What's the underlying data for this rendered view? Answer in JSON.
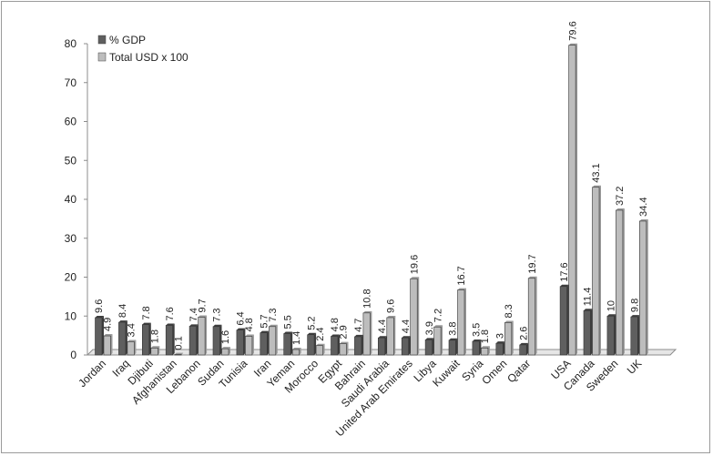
{
  "chart_data": {
    "type": "bar",
    "categories": [
      "Jordan",
      "Iraq",
      "Djibuti",
      "Afghanistan",
      "Lebanon",
      "Sudan",
      "Tunisia",
      "Iran",
      "Yeman",
      "Morocco",
      "Egypt",
      "Bahrain",
      "Saudi Arabia",
      "United Arab Emirates",
      "Libya",
      "Kuwait",
      "Syria",
      "Omen",
      "Qatar",
      "USA",
      "Canada",
      "Sweden",
      "UK"
    ],
    "series": [
      {
        "name": "% GDP",
        "values": [
          9.6,
          8.4,
          7.8,
          7.6,
          7.4,
          7.3,
          6.4,
          5.7,
          5.5,
          5.2,
          4.8,
          4.7,
          4.4,
          4.4,
          3.9,
          3.8,
          3.5,
          3,
          2.6,
          17.6,
          11.4,
          10,
          9.8
        ],
        "color": "#5f5f5f"
      },
      {
        "name": "Total USD x 100",
        "values": [
          4.9,
          3.4,
          1.8,
          0.1,
          9.7,
          1.6,
          4.8,
          7.3,
          1.4,
          2.4,
          2.9,
          10.8,
          9.6,
          19.6,
          7.2,
          16.7,
          1.8,
          8.3,
          19.7,
          79.6,
          43.1,
          37.2,
          34.4
        ],
        "color": "#bdbdbd"
      }
    ],
    "ylim": [
      0,
      80
    ],
    "yticks": [
      "0",
      "10",
      "20",
      "30",
      "40",
      "50",
      "60",
      "70",
      "80"
    ],
    "legend": "top-left",
    "grid": false
  }
}
